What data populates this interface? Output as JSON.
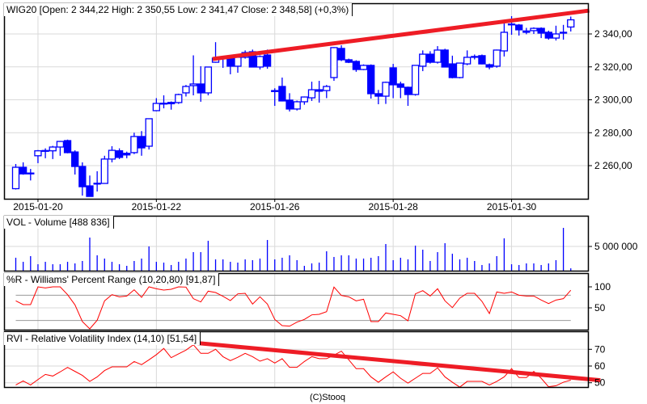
{
  "title": "WIG20 [Open: 2 344,22  High: 2 350,55  Low: 2 341,47  Close: 2 348,58] (+0,3%)",
  "footer": "(C)Stooq",
  "colors": {
    "candle": "#0000ff",
    "trend": "#ee1c25",
    "indicator": "#ff0000",
    "grid": "#d9d9d9",
    "ref": "#999999"
  },
  "chart_data": [
    {
      "type": "candlestick",
      "name": "WIG20",
      "ylim": [
        2240,
        2355
      ],
      "y_ticks": [
        {
          "v": 2340,
          "label": "2 340,00"
        },
        {
          "v": 2320,
          "label": "2 320,00"
        },
        {
          "v": 2300,
          "label": "2 300,00"
        },
        {
          "v": 2280,
          "label": "2 280,00"
        },
        {
          "v": 2260,
          "label": "2 260,00"
        }
      ],
      "x_ticks": [
        {
          "i": 3,
          "label": "2015-01-20"
        },
        {
          "i": 19,
          "label": "2015-01-22"
        },
        {
          "i": 35,
          "label": "2015-01-26"
        },
        {
          "i": 51,
          "label": "2015-01-28"
        },
        {
          "i": 67,
          "label": "2015-01-30"
        }
      ],
      "ohlc": [
        [
          2246,
          2261,
          2245.5,
          2259
        ],
        [
          2259,
          2262,
          2254.5,
          2255
        ],
        [
          2255.5,
          2258,
          2251,
          2255
        ],
        [
          2266,
          2269.5,
          2261.5,
          2269
        ],
        [
          2269,
          2270.5,
          2264.5,
          2269.2
        ],
        [
          2269,
          2272,
          2264,
          2271.3
        ],
        [
          2271.3,
          2275,
          2266,
          2274.7
        ],
        [
          2275.2,
          2275.8,
          2267.5,
          2267.9
        ],
        [
          2268.3,
          2269.3,
          2254.6,
          2259.5
        ],
        [
          2259.5,
          2262,
          2241.8,
          2247.2
        ],
        [
          2247.7,
          2254,
          2241.3,
          2241.3
        ],
        [
          2249,
          2256.6,
          2244.3,
          2249.3
        ],
        [
          2249.2,
          2266,
          2249,
          2264
        ],
        [
          2264,
          2271.8,
          2262,
          2269.3
        ],
        [
          2269,
          2270.5,
          2264,
          2265
        ],
        [
          2267.5,
          2268.5,
          2264.5,
          2266.5
        ],
        [
          2267.9,
          2280,
          2267,
          2277.7
        ],
        [
          2277.7,
          2281,
          2266,
          2270.8
        ],
        [
          2271.8,
          2288.5,
          2269.8,
          2288.5
        ],
        [
          2293.4,
          2301,
          2293,
          2297.8
        ],
        [
          2297.8,
          2302.7,
          2294.8,
          2297.9
        ],
        [
          2298.4,
          2299,
          2294,
          2297.6
        ],
        [
          2298.3,
          2303.7,
          2297.5,
          2303.2
        ],
        [
          2304.2,
          2309,
          2302,
          2308.1
        ],
        [
          2308.6,
          2327,
          2302.7,
          2309.6
        ],
        [
          2309.6,
          2320.4,
          2298.8,
          2304.2
        ],
        [
          2304.2,
          2320,
          2302.7,
          2319.9
        ],
        [
          2322.8,
          2335,
          2322.5,
          2325.3
        ],
        [
          2325.3,
          2326,
          2319.4,
          2325.5
        ],
        [
          2325.3,
          2326,
          2315.5,
          2320.4
        ],
        [
          2320.4,
          2326.5,
          2316.4,
          2325.8
        ],
        [
          2325.8,
          2330,
          2325,
          2328.7
        ],
        [
          2329.2,
          2330.5,
          2319.9,
          2319.9
        ],
        [
          2319.9,
          2327,
          2318.4,
          2326.3
        ],
        [
          2327.2,
          2330.5,
          2318.9,
          2320.4
        ],
        [
          2305.6,
          2307,
          2296.3,
          2305
        ],
        [
          2308.1,
          2313.5,
          2299,
          2299.3
        ],
        [
          2299.8,
          2304,
          2292.9,
          2294.4
        ],
        [
          2294.4,
          2299.5,
          2293.5,
          2298.8
        ],
        [
          2298.8,
          2302,
          2297,
          2301.7
        ],
        [
          2301.2,
          2311,
          2299.3,
          2306.1
        ],
        [
          2306.1,
          2311.5,
          2298.3,
          2305.2
        ],
        [
          2305.6,
          2309,
          2301,
          2308.1
        ],
        [
          2313.5,
          2332,
          2311.5,
          2331.7
        ],
        [
          2331.2,
          2333.1,
          2323.5,
          2324.3
        ],
        [
          2324.3,
          2325,
          2322.3,
          2322.8
        ],
        [
          2323.3,
          2324,
          2317,
          2318.4
        ],
        [
          2318.4,
          2321.5,
          2318,
          2320.9
        ],
        [
          2320.9,
          2321.5,
          2300.7,
          2303.7
        ],
        [
          2303.7,
          2306,
          2297.3,
          2302.2
        ],
        [
          2302.2,
          2311,
          2297.5,
          2310.6
        ],
        [
          2319.4,
          2321.8,
          2301,
          2309.1
        ],
        [
          2309.6,
          2311,
          2301,
          2307.6
        ],
        [
          2307.6,
          2308,
          2296.3,
          2303.2
        ],
        [
          2303.2,
          2321,
          2302.5,
          2320.9
        ],
        [
          2320.4,
          2330,
          2317.4,
          2327.7
        ],
        [
          2327.7,
          2329.5,
          2322,
          2322.8
        ],
        [
          2322.8,
          2332.6,
          2322,
          2330.2
        ],
        [
          2330.2,
          2331,
          2319.9,
          2319.9
        ],
        [
          2321.8,
          2326.8,
          2313,
          2313.5
        ],
        [
          2313.5,
          2322.5,
          2313,
          2322.3
        ],
        [
          2321.8,
          2330,
          2321,
          2325.8
        ],
        [
          2326,
          2327.5,
          2324.5,
          2326.3
        ],
        [
          2326.8,
          2327.5,
          2321.5,
          2321.8
        ],
        [
          2321.3,
          2322,
          2318.5,
          2319.9
        ],
        [
          2320.4,
          2330.5,
          2319.5,
          2330.2
        ],
        [
          2329.7,
          2346.4,
          2326.3,
          2341
        ],
        [
          2345.9,
          2350.8,
          2339.5,
          2346
        ],
        [
          2345.4,
          2346,
          2339,
          2342.5
        ],
        [
          2341.8,
          2343.7,
          2339.8,
          2341
        ],
        [
          2342,
          2344,
          2340,
          2343.4
        ],
        [
          2343.4,
          2344,
          2337.5,
          2340.5
        ],
        [
          2341,
          2342,
          2336.5,
          2337.5
        ],
        [
          2337.5,
          2345,
          2336,
          2340
        ],
        [
          2340.5,
          2345.5,
          2336.5,
          2341
        ],
        [
          2344.22,
          2350.55,
          2341.47,
          2348.58
        ]
      ],
      "trendline": {
        "from": [
          26.6,
          2324.8
        ],
        "to": [
          77.5,
          2354.2
        ]
      }
    },
    {
      "type": "bar",
      "label": "VOL - Volume [488 836]",
      "unit": "millions",
      "y_ticks": [
        {
          "v": 5,
          "label": "5 000 000"
        }
      ],
      "values": [
        2.67,
        1.83,
        3.0,
        1.33,
        1.83,
        1.33,
        1.33,
        1.83,
        1.5,
        2.0,
        6.83,
        3.17,
        2.5,
        1.83,
        1.33,
        1.0,
        2.0,
        2.5,
        5.0,
        1.83,
        1.67,
        1.17,
        1.83,
        2.5,
        3.83,
        3.83,
        6.17,
        2.33,
        2.33,
        1.83,
        1.67,
        2.33,
        2.17,
        2.5,
        6.33,
        2.33,
        2.67,
        3.17,
        2.17,
        1.0,
        1.5,
        1.67,
        4.0,
        2.83,
        3.17,
        3.17,
        2.5,
        2.5,
        2.67,
        3.0,
        5.5,
        2.17,
        2.67,
        2.33,
        5.17,
        4.33,
        2.0,
        3.83,
        5.67,
        3.5,
        2.33,
        2.67,
        2.0,
        1.17,
        1.5,
        3.0,
        6.67,
        1.33,
        1.17,
        1.5,
        1.5,
        1.17,
        1.5,
        2.17,
        8.83,
        0.489
      ]
    },
    {
      "type": "line",
      "label": "%R - Williams' Percent Range (10,20,80) [91,87]",
      "y_ticks": [
        {
          "v": 100,
          "label": "100"
        },
        {
          "v": 50,
          "label": "50"
        }
      ],
      "ref_lines": [
        80,
        20
      ],
      "values": [
        66.7,
        57.7,
        57.7,
        100,
        97.4,
        100,
        100,
        81.4,
        57.1,
        17.3,
        0,
        20.5,
        66.7,
        81.4,
        76.3,
        78.2,
        93,
        75,
        100,
        95.5,
        92.3,
        94.2,
        100,
        99.4,
        71.8,
        64.1,
        89.7,
        86.5,
        77.6,
        67.3,
        83.3,
        84.6,
        59,
        76.3,
        59,
        22.4,
        7.7,
        6.4,
        16,
        22.4,
        33.3,
        34.6,
        41,
        99.4,
        79.5,
        76.3,
        66.7,
        70.5,
        17.3,
        17.3,
        37.8,
        34.6,
        31.4,
        19.2,
        83.3,
        91,
        78.2,
        95.5,
        66.7,
        50.6,
        73.1,
        84.6,
        84.6,
        65.4,
        36.5,
        87.8,
        84.6,
        87.8,
        80.1,
        78.2,
        78.2,
        68.6,
        60.3,
        68.6,
        71.8,
        91.87
      ]
    },
    {
      "type": "line",
      "label": "RVI - Relative Volatility Index (14,10) [51,54]",
      "y_ticks": [
        {
          "v": 70,
          "label": "70"
        },
        {
          "v": 60,
          "label": "60"
        },
        {
          "v": 50,
          "label": "50"
        }
      ],
      "values": [
        48.7,
        51.1,
        48.7,
        51.9,
        55,
        54,
        56.5,
        59.2,
        56.8,
        54.4,
        50.8,
        53.5,
        57.3,
        59.5,
        59.5,
        59.5,
        62.7,
        60.8,
        63.7,
        66.8,
        70.5,
        65,
        67.3,
        69.5,
        72.7,
        67.6,
        67.6,
        70,
        65.6,
        63.2,
        65.2,
        67.6,
        65.6,
        62.9,
        64.4,
        61.8,
        64.4,
        59.2,
        59.2,
        62.7,
        65.6,
        64.4,
        64.4,
        66.5,
        68.9,
        63.7,
        58.4,
        58.4,
        53.5,
        50.3,
        53.5,
        56.5,
        52.7,
        49.8,
        52.7,
        55.6,
        55.6,
        58.9,
        53.5,
        50.3,
        47.4,
        50.8,
        50.8,
        50.8,
        48.7,
        50.8,
        53.5,
        58.4,
        53.1,
        53.1,
        56.8,
        52.7,
        47.6,
        48.2,
        50.3,
        51.54
      ],
      "trendline": {
        "from": [
          23.9,
          74.0
        ],
        "to": [
          79,
          51.5
        ]
      }
    }
  ]
}
